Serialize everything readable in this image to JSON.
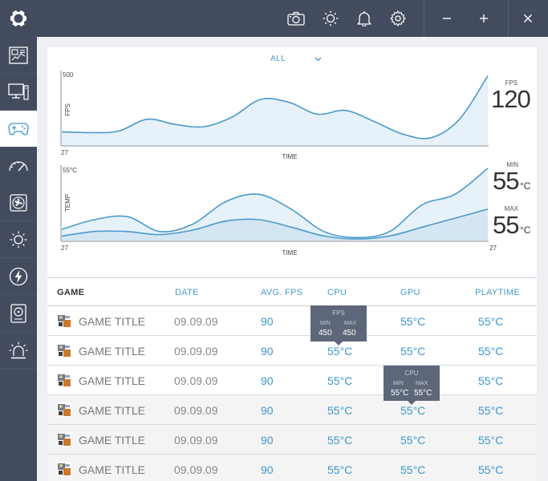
{
  "topbar": {
    "icons": [
      "camera-icon",
      "brightness-icon",
      "bell-icon",
      "gear-icon"
    ],
    "window": [
      "minimize-icon",
      "maximize-icon",
      "close-icon"
    ]
  },
  "sidebar": {
    "items": [
      {
        "name": "dashboard-icon",
        "active": false
      },
      {
        "name": "monitor-icon",
        "active": false
      },
      {
        "name": "gamepad-icon",
        "active": true
      },
      {
        "name": "gauge-icon",
        "active": false
      },
      {
        "name": "fan-icon",
        "active": false
      },
      {
        "name": "sun-icon",
        "active": false
      },
      {
        "name": "lightning-icon",
        "active": false
      },
      {
        "name": "hdd-icon",
        "active": false
      },
      {
        "name": "alarm-light-icon",
        "active": false
      }
    ]
  },
  "filter": {
    "label": "ALL"
  },
  "chart_data": [
    {
      "type": "area",
      "ylabel": "FPS",
      "xlabel": "TIME",
      "ymax_label": "500",
      "xmin_label": "27",
      "series": [
        {
          "values": [
            0.18,
            0.17,
            0.19,
            0.35,
            0.28,
            0.25,
            0.38,
            0.62,
            0.58,
            0.42,
            0.47,
            0.32,
            0.15,
            0.1,
            0.35,
            0.94
          ]
        }
      ]
    },
    {
      "type": "area",
      "ylabel": "TEMP",
      "xlabel": "TIME",
      "ymax_label": "55°C",
      "xmin_label": "27",
      "xmax_label": "27",
      "series": [
        {
          "values": [
            0.15,
            0.28,
            0.32,
            0.12,
            0.22,
            0.52,
            0.62,
            0.42,
            0.12,
            0.04,
            0.12,
            0.48,
            0.62,
            0.97
          ]
        },
        {
          "values": [
            0.06,
            0.12,
            0.12,
            0.08,
            0.14,
            0.26,
            0.28,
            0.18,
            0.06,
            0.02,
            0.06,
            0.18,
            0.3,
            0.42
          ]
        }
      ]
    }
  ],
  "readouts": {
    "fps_label": "FPS",
    "fps_value": "120",
    "min_label": "MIN",
    "min_value": "55",
    "max_label": "MAX",
    "max_value": "55",
    "unit": "°C"
  },
  "table": {
    "headers": {
      "game": "GAME",
      "date": "DATE",
      "fps": "AVG. FPS",
      "cpu": "CPU",
      "gpu": "GPU",
      "playtime": "PLAYTIME"
    },
    "rows": [
      {
        "title": "GAME TITLE",
        "date": "09.09.09",
        "fps": "90",
        "cpu": "",
        "gpu": "55°C",
        "playtime": "55°C"
      },
      {
        "title": "GAME TITLE",
        "date": "09.09.09",
        "fps": "90",
        "cpu": "55°C",
        "gpu": "55°C",
        "playtime": "55°C"
      },
      {
        "title": "GAME TITLE",
        "date": "09.09.09",
        "fps": "90",
        "cpu": "55°C",
        "gpu": "",
        "playtime": "55°C"
      },
      {
        "title": "GAME TITLE",
        "date": "09.09.09",
        "fps": "90",
        "cpu": "55°C",
        "gpu": "55°C",
        "playtime": "55°C"
      },
      {
        "title": "GAME TITLE",
        "date": "09.09.09",
        "fps": "90",
        "cpu": "55°C",
        "gpu": "55°C",
        "playtime": "55°C"
      },
      {
        "title": "GAME TITLE",
        "date": "09.09.09",
        "fps": "90",
        "cpu": "55°C",
        "gpu": "55°C",
        "playtime": "55°C"
      }
    ]
  },
  "tooltips": {
    "fps": {
      "title": "FPS",
      "min_label": "MIN",
      "max_label": "MAX",
      "min": "450",
      "max": "450"
    },
    "cpu": {
      "title": "CPU",
      "min_label": "MIN",
      "max_label": "MAX",
      "min": "55°C",
      "max": "55°C"
    }
  },
  "colors": {
    "accent": "#3d97c9",
    "chrome": "#434c5f",
    "fill": "#e6f1fa",
    "fill2": "#d4e6f4"
  }
}
